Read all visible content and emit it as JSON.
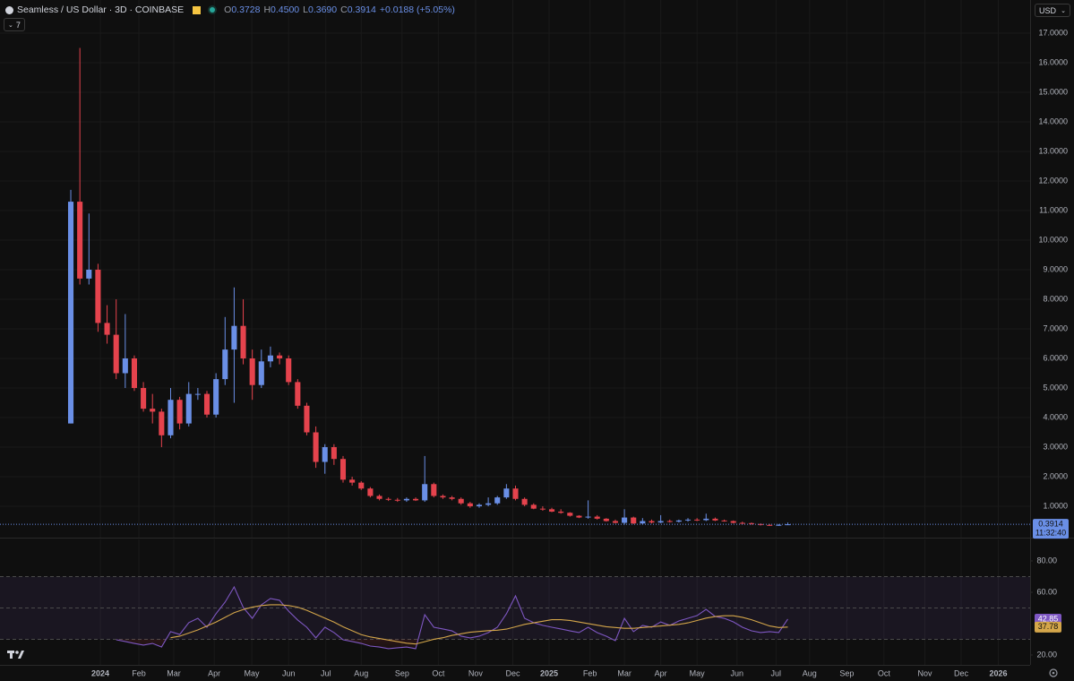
{
  "header": {
    "symbol": "Seamless / US Dollar · 3D · COINBASE",
    "ohlc": [
      {
        "label": "O",
        "value": "0.3728"
      },
      {
        "label": "H",
        "value": "0.4500"
      },
      {
        "label": "L",
        "value": "0.3690"
      },
      {
        "label": "C",
        "value": "0.3914"
      }
    ],
    "change": "+0.0188 (+5.05%)",
    "indicators_count": "7",
    "currency": "USD",
    "countdown": "11:32:40"
  },
  "chart_data": [
    {
      "type": "candlestick",
      "title": "Seamless / US Dollar · 3D · COINBASE",
      "up_color": "#6a8fe6",
      "down_color": "#e5434d",
      "grid": true,
      "open": [
        3.8,
        11.3,
        8.7,
        9.0,
        7.2,
        6.8,
        5.5,
        6.0,
        5.0,
        4.3,
        4.2,
        3.4,
        4.6,
        3.8,
        4.8,
        4.8,
        4.1,
        5.3,
        6.3,
        7.1,
        6.0,
        5.1,
        5.9,
        6.1,
        6.0,
        5.2,
        4.4,
        3.5,
        2.5,
        3.0,
        2.6,
        1.9,
        1.8,
        1.6,
        1.35,
        1.25,
        1.22,
        1.2,
        1.25,
        1.2,
        1.75,
        1.35,
        1.3,
        1.25,
        1.1,
        1.0,
        1.05,
        1.1,
        1.3,
        1.6,
        1.25,
        1.05,
        0.92,
        0.9,
        0.82,
        0.78,
        0.68,
        0.62,
        0.65,
        0.58,
        0.5,
        0.44,
        0.62,
        0.42,
        0.5,
        0.45,
        0.5,
        0.48,
        0.52,
        0.55,
        0.53,
        0.58,
        0.52,
        0.5,
        0.44,
        0.43,
        0.4,
        0.37,
        0.36,
        0.3728
      ],
      "high": [
        11.7,
        16.5,
        10.9,
        9.2,
        7.8,
        8.0,
        7.5,
        6.1,
        5.2,
        4.8,
        4.3,
        5.0,
        4.7,
        5.2,
        5.0,
        4.9,
        5.5,
        7.4,
        8.4,
        8.0,
        6.3,
        6.3,
        6.4,
        6.2,
        6.1,
        5.3,
        4.5,
        3.7,
        3.1,
        3.1,
        2.7,
        2.0,
        1.85,
        1.65,
        1.4,
        1.3,
        1.28,
        1.3,
        1.3,
        2.7,
        1.8,
        1.4,
        1.35,
        1.3,
        1.15,
        1.1,
        1.3,
        1.35,
        1.75,
        1.7,
        1.3,
        1.1,
        1.0,
        0.95,
        0.9,
        0.8,
        0.7,
        1.2,
        0.7,
        0.6,
        0.55,
        0.9,
        0.65,
        0.6,
        0.55,
        0.7,
        0.55,
        0.55,
        0.6,
        0.6,
        0.75,
        0.62,
        0.55,
        0.52,
        0.48,
        0.45,
        0.42,
        0.4,
        0.4,
        0.45
      ],
      "low": [
        3.8,
        8.5,
        8.5,
        6.9,
        6.5,
        5.3,
        5.0,
        4.9,
        4.2,
        3.8,
        3.0,
        3.3,
        3.6,
        3.7,
        4.6,
        4.0,
        4.0,
        5.1,
        4.5,
        5.8,
        4.6,
        5.0,
        5.7,
        5.8,
        5.1,
        4.3,
        3.4,
        2.3,
        2.1,
        2.4,
        1.8,
        1.7,
        1.55,
        1.3,
        1.2,
        1.18,
        1.15,
        1.15,
        1.18,
        1.15,
        1.3,
        1.25,
        1.2,
        1.05,
        0.95,
        0.95,
        1.0,
        1.05,
        1.25,
        1.2,
        1.0,
        0.9,
        0.85,
        0.8,
        0.75,
        0.65,
        0.6,
        0.58,
        0.55,
        0.48,
        0.42,
        0.38,
        0.4,
        0.38,
        0.42,
        0.43,
        0.45,
        0.45,
        0.48,
        0.5,
        0.5,
        0.5,
        0.48,
        0.42,
        0.4,
        0.38,
        0.35,
        0.34,
        0.34,
        0.369
      ],
      "close": [
        11.3,
        8.7,
        9.0,
        7.2,
        6.8,
        5.5,
        6.0,
        5.0,
        4.3,
        4.2,
        3.4,
        4.6,
        3.8,
        4.8,
        4.8,
        4.1,
        5.3,
        6.3,
        7.1,
        6.0,
        5.1,
        5.9,
        6.1,
        6.0,
        5.2,
        4.4,
        3.5,
        2.5,
        3.0,
        2.6,
        1.9,
        1.8,
        1.6,
        1.35,
        1.25,
        1.22,
        1.2,
        1.25,
        1.2,
        1.75,
        1.35,
        1.3,
        1.25,
        1.1,
        1.0,
        1.05,
        1.1,
        1.3,
        1.6,
        1.25,
        1.05,
        0.92,
        0.9,
        0.82,
        0.78,
        0.68,
        0.62,
        0.65,
        0.58,
        0.5,
        0.44,
        0.62,
        0.42,
        0.5,
        0.45,
        0.5,
        0.48,
        0.52,
        0.55,
        0.53,
        0.58,
        0.52,
        0.5,
        0.44,
        0.43,
        0.4,
        0.37,
        0.36,
        0.3728,
        0.3914
      ],
      "xlim": [
        -7.8,
        105.7
      ],
      "xticks": [
        {
          "value": 3.26,
          "label": "2024"
        },
        {
          "value": 7.5,
          "label": "Feb"
        },
        {
          "value": 11.35,
          "label": "Mar"
        },
        {
          "value": 15.8,
          "label": "Apr"
        },
        {
          "value": 19.94,
          "label": "May"
        },
        {
          "value": 24,
          "label": "Jun"
        },
        {
          "value": 28.1,
          "label": "Jul"
        },
        {
          "value": 32,
          "label": "Aug"
        },
        {
          "value": 36.5,
          "label": "Sep"
        },
        {
          "value": 40.5,
          "label": "Oct"
        },
        {
          "value": 44.6,
          "label": "Nov"
        },
        {
          "value": 48.7,
          "label": "Dec"
        },
        {
          "value": 52.7,
          "label": "2025"
        },
        {
          "value": 57.2,
          "label": "Feb"
        },
        {
          "value": 61,
          "label": "Mar"
        },
        {
          "value": 65,
          "label": "Apr"
        },
        {
          "value": 69,
          "label": "May"
        },
        {
          "value": 73.4,
          "label": "Jun"
        },
        {
          "value": 77.7,
          "label": "Jul"
        },
        {
          "value": 81.4,
          "label": "Aug"
        },
        {
          "value": 85.5,
          "label": "Sep"
        },
        {
          "value": 89.6,
          "label": "Oct"
        },
        {
          "value": 94.1,
          "label": "Nov"
        },
        {
          "value": 98.1,
          "label": "Dec"
        },
        {
          "value": 102.2,
          "label": "2026"
        }
      ],
      "ylim": [
        -0.06,
        18.12
      ],
      "yticks": [
        {
          "value": 1,
          "label": "1.0000"
        },
        {
          "value": 2,
          "label": "2.0000"
        },
        {
          "value": 3,
          "label": "3.0000"
        },
        {
          "value": 4,
          "label": "4.0000"
        },
        {
          "value": 5,
          "label": "5.0000"
        },
        {
          "value": 6,
          "label": "6.0000"
        },
        {
          "value": 7,
          "label": "7.0000"
        },
        {
          "value": 8,
          "label": "8.0000"
        },
        {
          "value": 9,
          "label": "9.0000"
        },
        {
          "value": 10,
          "label": "10.0000"
        },
        {
          "value": 11,
          "label": "11.0000"
        },
        {
          "value": 12,
          "label": "12.0000"
        },
        {
          "value": 13,
          "label": "13.0000"
        },
        {
          "value": 14,
          "label": "14.0000"
        },
        {
          "value": 15,
          "label": "15.0000"
        },
        {
          "value": 16,
          "label": "16.0000"
        },
        {
          "value": 17,
          "label": "17.0000"
        }
      ]
    },
    {
      "type": "line",
      "ylim": [
        13.7,
        93.7
      ],
      "levels": [
        30,
        50,
        70
      ],
      "band_color": "#7e57c2",
      "below_color": "#e5434d",
      "yticks": [
        {
          "value": 20,
          "label": "20.00"
        },
        {
          "value": 60,
          "label": "60.00"
        },
        {
          "value": 80,
          "label": "80.00"
        }
      ],
      "series": [
        {
          "color": "#7e57c2",
          "values": [
            null,
            null,
            null,
            null,
            null,
            29.7,
            28.6,
            27.4,
            26.3,
            27.4,
            25.1,
            34.9,
            33.1,
            40.6,
            43.4,
            37.7,
            46.3,
            53.7,
            63.4,
            50.3,
            43.4,
            52,
            56,
            54.9,
            48,
            42.3,
            37.7,
            30.9,
            37.7,
            34.3,
            29.7,
            28.6,
            27.4,
            25.7,
            25.1,
            24,
            24.6,
            25.1,
            24,
            45.7,
            37.7,
            36.6,
            35.4,
            32,
            30.9,
            32,
            34.3,
            37.7,
            46.3,
            57.7,
            43.4,
            40.6,
            38.9,
            37.7,
            36.6,
            35.4,
            34.3,
            37.7,
            34.3,
            32,
            29.1,
            43.4,
            34.9,
            38.9,
            37.7,
            41.1,
            38.9,
            41.7,
            43.4,
            45.1,
            49.1,
            44.6,
            43.4,
            41.1,
            37.7,
            35.4,
            34.3,
            34.9,
            34.3,
            42.85
          ]
        },
        {
          "color": "#d4a64a",
          "values": [
            null,
            null,
            null,
            null,
            null,
            null,
            null,
            null,
            null,
            null,
            null,
            31,
            32,
            34,
            36,
            38.5,
            41,
            44,
            47,
            49,
            50.5,
            51.5,
            52,
            52,
            51.5,
            50.5,
            48.5,
            46,
            43.5,
            41,
            38,
            35.5,
            33,
            31.5,
            30.5,
            29.5,
            28.5,
            27.5,
            27,
            28.5,
            30,
            31,
            32.5,
            33.5,
            34.5,
            35,
            35.5,
            35.8,
            36.5,
            38,
            39.5,
            40.5,
            41.5,
            42.5,
            42.5,
            42,
            41,
            40,
            39,
            38,
            37.5,
            37,
            37,
            37.5,
            38,
            38.5,
            39,
            39.5,
            40.5,
            42,
            43.5,
            44.5,
            45,
            45,
            44,
            42.5,
            40.5,
            38.5,
            37.5,
            37.78
          ]
        }
      ]
    }
  ]
}
